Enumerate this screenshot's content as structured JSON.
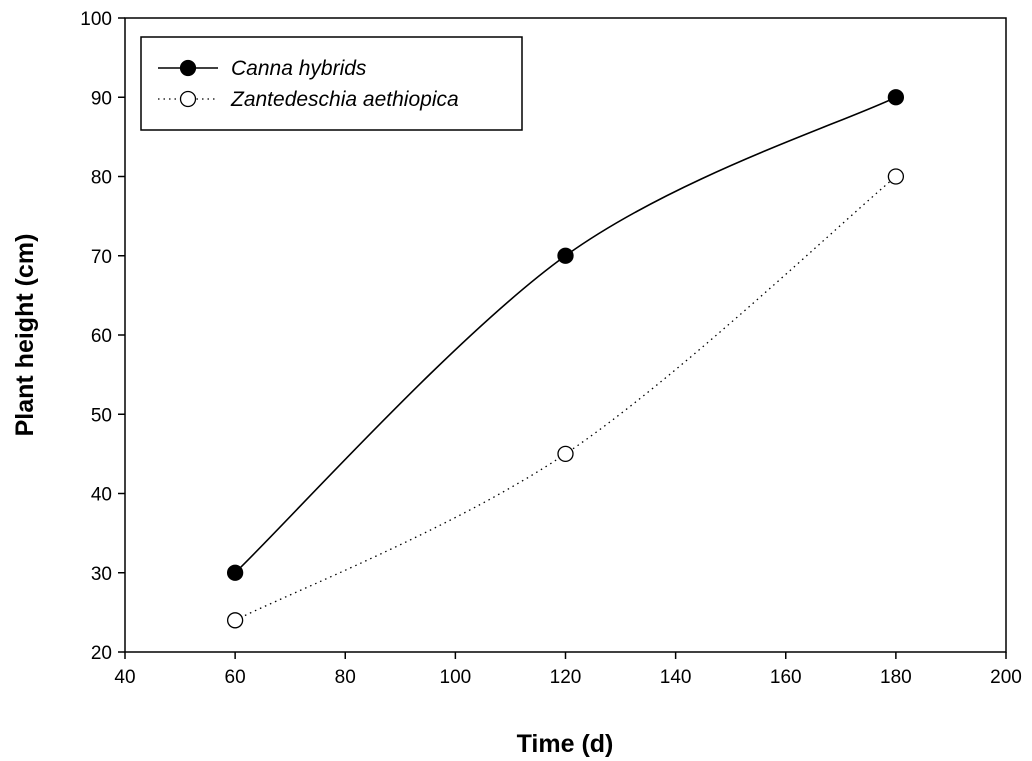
{
  "chart_data": {
    "type": "line",
    "title": "",
    "xlabel": "Time (d)",
    "ylabel": "Plant height (cm)",
    "xlim": [
      40,
      200
    ],
    "ylim": [
      20,
      100
    ],
    "xticks": [
      40,
      60,
      80,
      100,
      120,
      140,
      160,
      180,
      200
    ],
    "yticks": [
      20,
      30,
      40,
      50,
      60,
      70,
      80,
      90,
      100
    ],
    "grid": false,
    "legend_position": "top-left",
    "series": [
      {
        "name": "Canna hybrids",
        "x": [
          60,
          120,
          180
        ],
        "values": [
          30,
          70,
          90
        ],
        "marker": "filled-circle",
        "line_style": "solid",
        "color": "#000000"
      },
      {
        "name": "Zantedeschia aethiopica",
        "x": [
          60,
          120,
          180
        ],
        "values": [
          24,
          45,
          80
        ],
        "marker": "open-circle",
        "line_style": "dotted",
        "color": "#000000"
      }
    ]
  }
}
